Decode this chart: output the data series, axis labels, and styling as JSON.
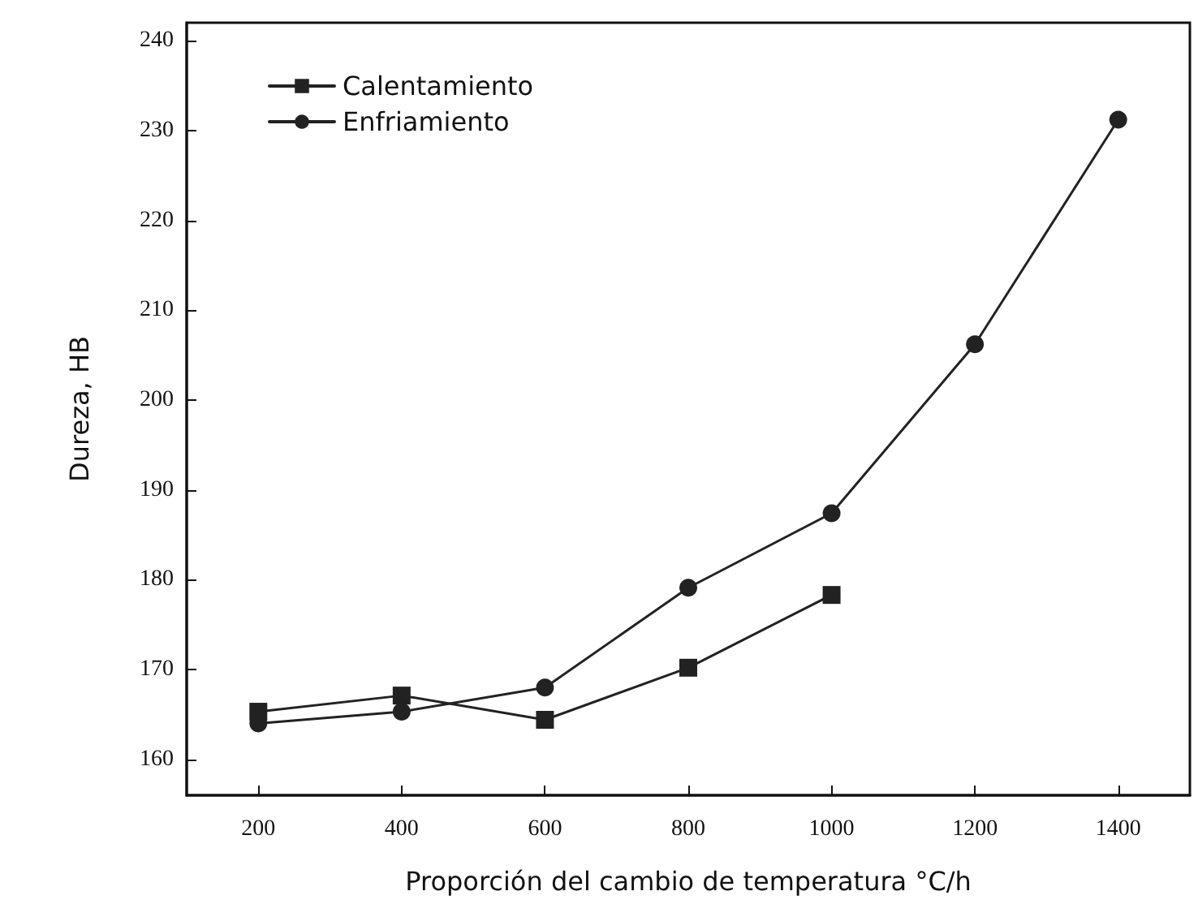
{
  "chart_data": {
    "type": "line",
    "xlabel": "Proporción del cambio de temperatura °C/h",
    "ylabel": "Dureza, HB",
    "x": [
      200,
      400,
      600,
      800,
      1000,
      1200,
      1400
    ],
    "series": [
      {
        "name": "Calentamiento",
        "color": "#222222",
        "marker": "square",
        "values": [
          165.3,
          167.1,
          164.4,
          170.2,
          178.3,
          null,
          null
        ]
      },
      {
        "name": "Enfriamiento",
        "color": "#222222",
        "marker": "circle",
        "values": [
          164,
          165.3,
          168,
          179.1,
          187.4,
          206.2,
          231.2
        ]
      }
    ],
    "xlim": [
      100,
      1500
    ],
    "xticks": [
      200,
      400,
      600,
      800,
      1000,
      1200,
      1400
    ],
    "ylim": [
      156,
      242
    ],
    "yticks": [
      160,
      170,
      180,
      190,
      200,
      210,
      220,
      230,
      240
    ],
    "grid": false,
    "legend": "top left",
    "line_style": "solid"
  }
}
